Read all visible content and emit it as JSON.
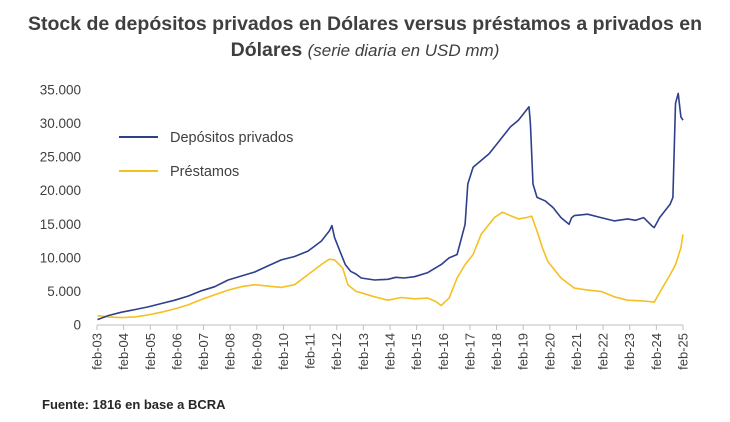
{
  "chart_data": {
    "type": "line",
    "title_main": "Stock de depósitos privados en Dólares versus préstamos a privados en Dólares",
    "title_sub": "(serie diaria en USD mm)",
    "xlabel": "",
    "ylabel": "",
    "ylim": [
      0,
      35000
    ],
    "yticks": [
      "0",
      "5.000",
      "10.000",
      "15.000",
      "20.000",
      "25.000",
      "30.000",
      "35.000"
    ],
    "ytick_values": [
      0,
      5000,
      10000,
      15000,
      20000,
      25000,
      30000,
      35000
    ],
    "xlim": [
      2003.08,
      2025.08
    ],
    "xticks": [
      "feb-03",
      "feb-04",
      "feb-05",
      "feb-06",
      "feb-07",
      "feb-08",
      "feb-09",
      "feb-10",
      "feb-11",
      "feb-12",
      "feb-13",
      "feb-14",
      "feb-15",
      "feb-16",
      "feb-17",
      "feb-18",
      "feb-19",
      "feb-20",
      "feb-21",
      "feb-22",
      "feb-23",
      "feb-24",
      "feb-25"
    ],
    "legend_position": "top-left",
    "grid": false,
    "series": [
      {
        "name": "Depósitos privados",
        "color": "#2e3f8c",
        "x": [
          2003.1,
          2003.5,
          2004.0,
          2004.5,
          2005.0,
          2005.5,
          2006.0,
          2006.5,
          2007.0,
          2007.5,
          2008.0,
          2008.5,
          2009.0,
          2009.5,
          2010.0,
          2010.5,
          2011.0,
          2011.5,
          2011.8,
          2011.9,
          2012.0,
          2012.2,
          2012.4,
          2012.6,
          2012.8,
          2013.0,
          2013.5,
          2014.0,
          2014.3,
          2014.6,
          2015.0,
          2015.5,
          2016.0,
          2016.3,
          2016.6,
          2016.9,
          2017.0,
          2017.2,
          2017.5,
          2017.8,
          2018.0,
          2018.3,
          2018.6,
          2018.9,
          2019.1,
          2019.3,
          2019.35,
          2019.45,
          2019.6,
          2019.9,
          2020.2,
          2020.5,
          2020.8,
          2020.9,
          2021.0,
          2021.5,
          2022.0,
          2022.5,
          2023.0,
          2023.3,
          2023.6,
          2023.9,
          2024.0,
          2024.2,
          2024.4,
          2024.6,
          2024.7,
          2024.8,
          2024.9,
          2025.0,
          2025.08
        ],
        "values": [
          800,
          1400,
          1900,
          2300,
          2700,
          3200,
          3700,
          4300,
          5100,
          5700,
          6700,
          7300,
          7900,
          8800,
          9700,
          10200,
          11000,
          12500,
          14000,
          14800,
          13000,
          11000,
          9000,
          8000,
          7600,
          7000,
          6700,
          6800,
          7100,
          7000,
          7200,
          7800,
          9000,
          10000,
          10500,
          15000,
          21000,
          23500,
          24500,
          25500,
          26500,
          28000,
          29500,
          30500,
          31500,
          32500,
          30000,
          21000,
          19000,
          18500,
          17500,
          16000,
          15000,
          16000,
          16300,
          16500,
          16000,
          15500,
          15800,
          15600,
          16000,
          14800,
          14500,
          16000,
          17000,
          18000,
          19000,
          33000,
          34500,
          31000,
          30500
        ]
      },
      {
        "name": "Préstamos",
        "color": "#f5c022",
        "x": [
          2003.1,
          2003.5,
          2004.0,
          2004.5,
          2005.0,
          2005.5,
          2006.0,
          2006.5,
          2007.0,
          2007.5,
          2008.0,
          2008.5,
          2009.0,
          2009.5,
          2010.0,
          2010.5,
          2011.0,
          2011.5,
          2011.8,
          2012.0,
          2012.3,
          2012.5,
          2012.8,
          2013.0,
          2013.5,
          2014.0,
          2014.5,
          2015.0,
          2015.5,
          2015.8,
          2016.0,
          2016.3,
          2016.6,
          2016.9,
          2017.2,
          2017.5,
          2017.8,
          2018.0,
          2018.3,
          2018.6,
          2018.9,
          2019.2,
          2019.4,
          2019.6,
          2019.8,
          2020.0,
          2020.5,
          2021.0,
          2021.5,
          2022.0,
          2022.5,
          2023.0,
          2023.5,
          2023.8,
          2024.0,
          2024.3,
          2024.6,
          2024.8,
          2025.0,
          2025.08
        ],
        "values": [
          1400,
          1200,
          1100,
          1200,
          1500,
          1900,
          2400,
          3000,
          3800,
          4500,
          5200,
          5700,
          6000,
          5800,
          5600,
          6000,
          7500,
          9000,
          9800,
          9700,
          8500,
          6000,
          5000,
          4800,
          4200,
          3700,
          4100,
          3900,
          4000,
          3500,
          2900,
          4000,
          7000,
          9000,
          10500,
          13500,
          15000,
          16000,
          16800,
          16300,
          15800,
          16000,
          16200,
          14000,
          11500,
          9500,
          7000,
          5500,
          5200,
          5000,
          4200,
          3700,
          3600,
          3500,
          3400,
          5500,
          7500,
          9000,
          11500,
          13500
        ]
      }
    ]
  },
  "source_note": "Fuente: 1816 en base a BCRA"
}
